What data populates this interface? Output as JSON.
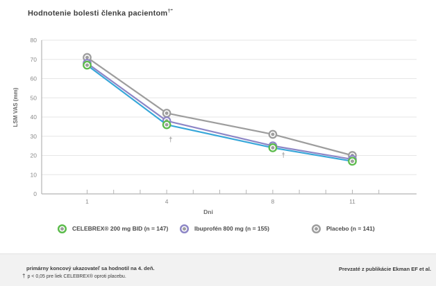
{
  "title": {
    "text": "Hodnotenie bolesti členka pacientom",
    "marker": "†″"
  },
  "chart_data": {
    "type": "line",
    "x": [
      1,
      4,
      8,
      11
    ],
    "xlabel": "Dni",
    "ylabel": "LSM VAS (mm)",
    "ylim": [
      0,
      80
    ],
    "ytick_step": 10,
    "xticks_minor": [
      1,
      2,
      3,
      4,
      5,
      6,
      7,
      8,
      9,
      10,
      11,
      12
    ],
    "xtick_labels": [
      1,
      4,
      8,
      11
    ],
    "grid": "horizontal",
    "legend_position": "bottom",
    "series": [
      {
        "name": "CELEBREX® 200 mg BID (n = 147)",
        "values": [
          67,
          36,
          24,
          17
        ],
        "line_color": "#38a7d9",
        "marker_color": "#5bbb4b"
      },
      {
        "name": "Ibuprofén 800 mg (n = 155)",
        "values": [
          68,
          38,
          25,
          18
        ],
        "line_color": "#8d86c6",
        "marker_color": "#8d86c6"
      },
      {
        "name": "Placebo (n = 141)",
        "values": [
          71,
          42,
          31,
          20
        ],
        "line_color": "#9d9d9d",
        "marker_color": "#9d9d9d"
      }
    ],
    "annotations": [
      {
        "text": "†",
        "x": 4.15,
        "y": 27
      },
      {
        "text": "†",
        "x": 8.4,
        "y": 19
      }
    ]
  },
  "footnotes": {
    "line1": "primárny koncový ukazovateľ sa hodnotil na 4. deň.",
    "line2_marker": "†",
    "line2": "p < 0,05 pre liek CELEBREX® oproti placebu.",
    "source": "Prevzaté z publikácie Ekman EF et al."
  },
  "colors": {
    "axis": "#b4b4b4",
    "grid": "#e6e6e6",
    "tick_text": "#8a8a8a",
    "axis_label": "#6a6a6a",
    "title": "#3f3f3f",
    "annotation": "#8a8a8a",
    "marker_center": "#9f9f9f",
    "footer_bg": "#f2f2f2"
  }
}
